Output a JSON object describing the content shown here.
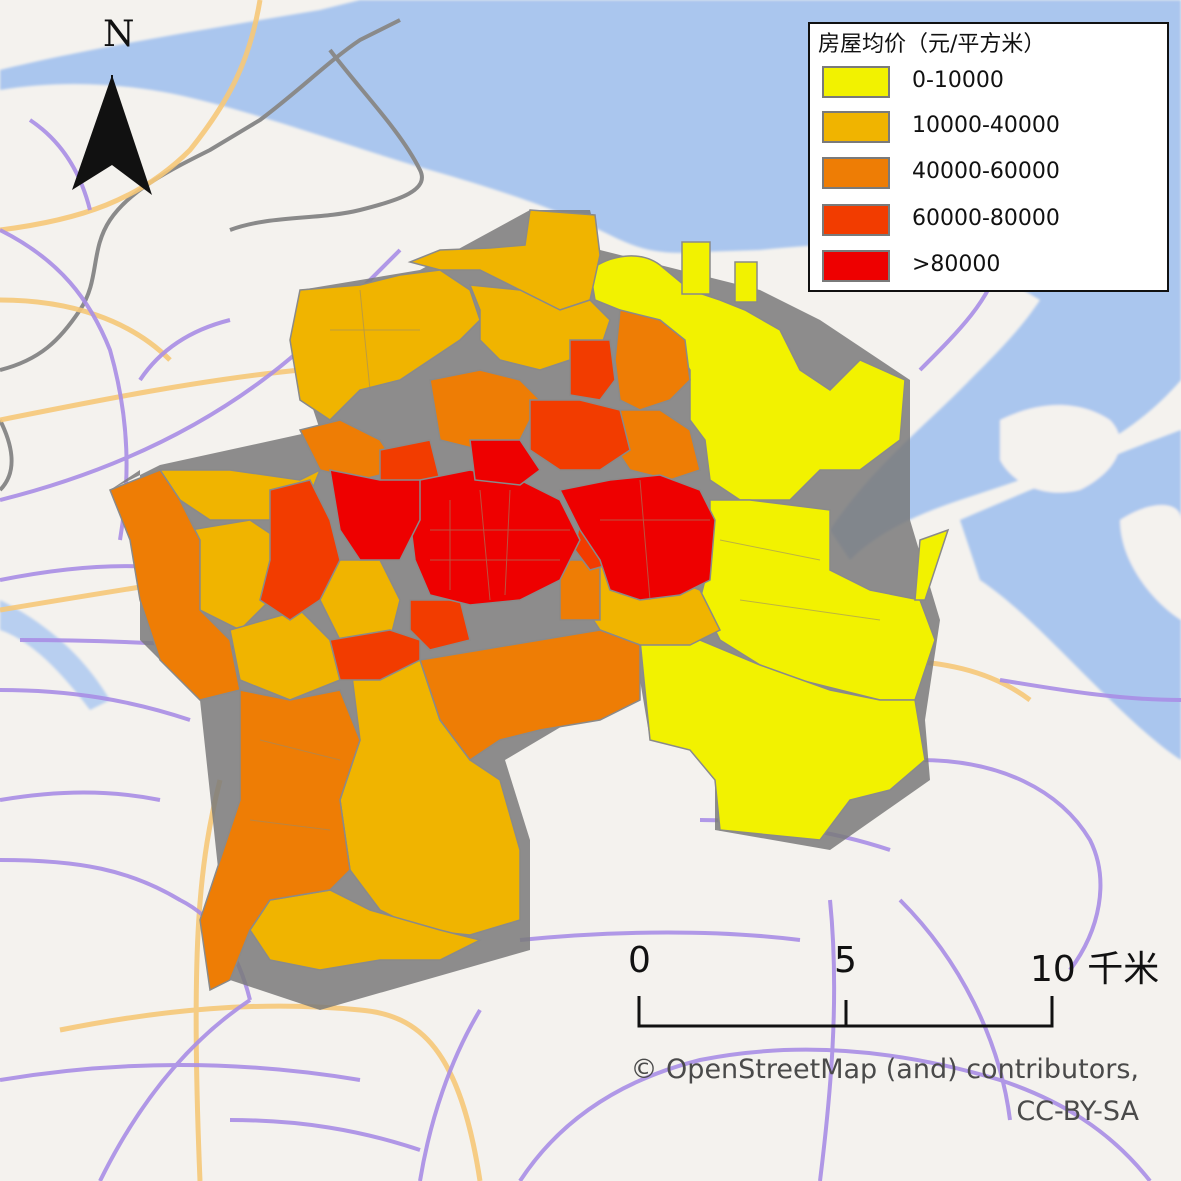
{
  "legend": {
    "title": "房屋均价（元/平方米）",
    "items": [
      {
        "label": "0-10000",
        "color": "#f2f200"
      },
      {
        "label": "10000-40000",
        "color": "#f0b400"
      },
      {
        "label": "40000-60000",
        "color": "#ee7d05"
      },
      {
        "label": "60000-80000",
        "color": "#f23c00"
      },
      {
        "label": ">80000",
        "color": "#ee0000"
      }
    ]
  },
  "north_arrow": {
    "label": "N",
    "icon": "north-arrow-icon"
  },
  "scale_bar": {
    "labels": [
      "0",
      "5",
      "10 千米"
    ]
  },
  "attribution": {
    "line1": "© OpenStreetMap (and) contributors,",
    "line2": "CC-BY-SA"
  },
  "colors": {
    "land": "#f4f2ee",
    "water": "#aac6ee",
    "metro_lines": "#a98ee6",
    "expressways": "#f6c878",
    "district_border": "#8a8a8a",
    "extrusion_shadow": "#707070"
  }
}
